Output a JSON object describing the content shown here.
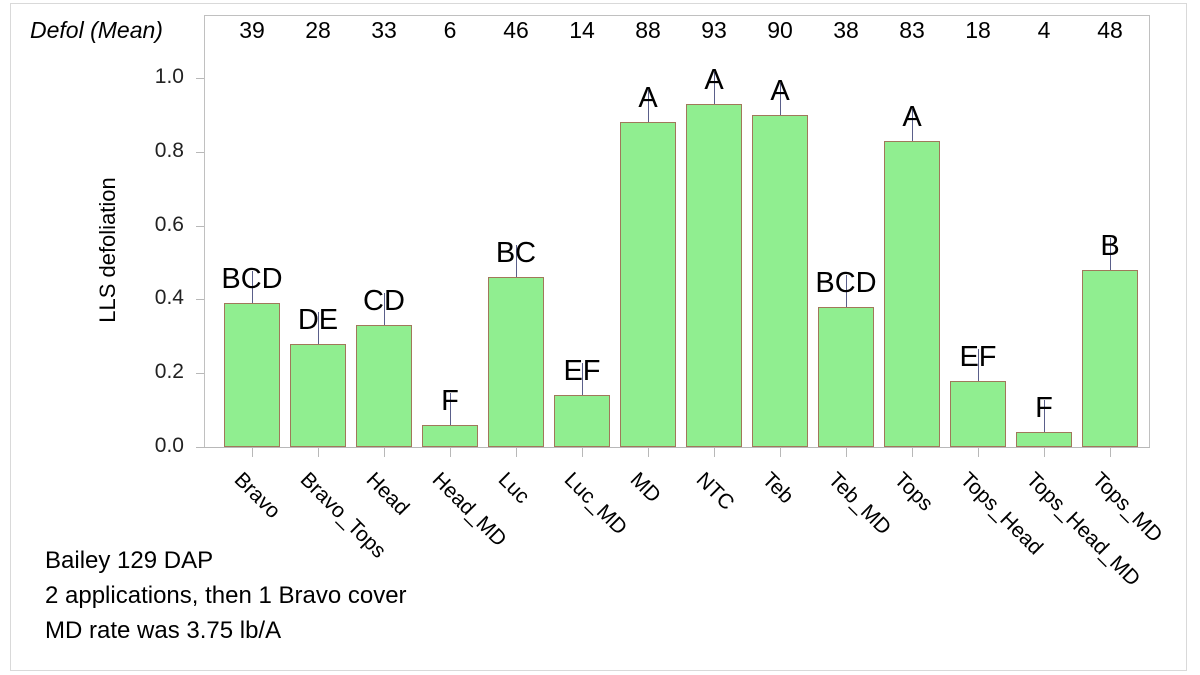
{
  "chart_data": {
    "type": "bar",
    "title": "",
    "xlabel": "",
    "ylabel": "LLS defoliation",
    "ylim": [
      0.0,
      1.0
    ],
    "yticks": [
      "0.0",
      "0.2",
      "0.4",
      "0.6",
      "0.8",
      "1.0"
    ],
    "grid": false,
    "legend": null,
    "bar_color": "#90EE90",
    "categories": [
      "Bravo",
      "Bravo_Tops",
      "Head",
      "Head_MD",
      "Luc",
      "Luc_MD",
      "MD",
      "NTC",
      "Teb",
      "Teb_MD",
      "Tops",
      "Tops_Head",
      "Tops_Head_MD",
      "Tops_MD"
    ],
    "values": [
      0.39,
      0.28,
      0.33,
      0.06,
      0.46,
      0.14,
      0.88,
      0.93,
      0.9,
      0.38,
      0.83,
      0.18,
      0.04,
      0.48
    ],
    "significance_letters": [
      "BCD",
      "DE",
      "CD",
      "F",
      "BC",
      "EF",
      "A",
      "A",
      "A",
      "BCD",
      "A",
      "EF",
      "F",
      "B"
    ],
    "mean_header_label": "Defol (Mean)",
    "means": [
      "39",
      "28",
      "33",
      "6",
      "46",
      "14",
      "88",
      "93",
      "90",
      "38",
      "83",
      "18",
      "4",
      "48"
    ]
  },
  "notes": [
    "Bailey 129 DAP",
    "2 applications, then 1 Bravo cover",
    "MD rate was 3.75 lb/A"
  ]
}
